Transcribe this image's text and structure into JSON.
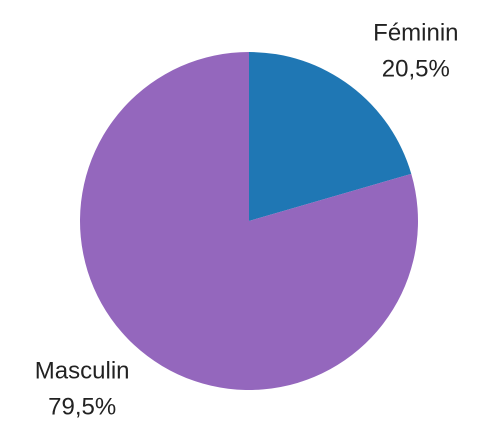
{
  "chart_data": {
    "type": "pie",
    "categories": [
      "Féminin",
      "Masculin"
    ],
    "values": [
      20.5,
      79.5
    ],
    "value_labels": [
      "20,5%",
      "79,5%"
    ],
    "colors": [
      "#1f77b4",
      "#9467bd"
    ]
  }
}
